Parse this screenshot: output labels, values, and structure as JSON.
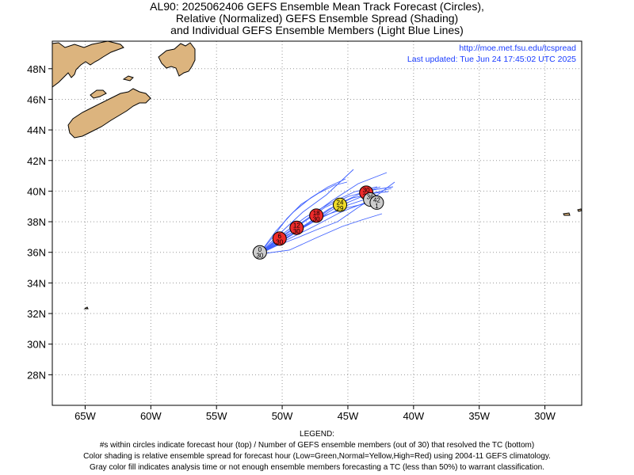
{
  "title": {
    "line1": "AL90: 2025062406 GEFS Ensemble Mean Track Forecast (Circles),",
    "line2": "Relative (Normalized) GEFS Ensemble Spread (Shading)",
    "line3": "and Individual GEFS Ensemble Members (Light Blue Lines)"
  },
  "info": {
    "url": "http://moe.met.fsu.edu/tcspread",
    "updated": "Last updated: Tue Jun 24 17:45:02 UTC 2025"
  },
  "axes": {
    "lon_ticks": [
      -65,
      -60,
      -55,
      -50,
      -45,
      -40,
      -35,
      -30
    ],
    "lon_labels": [
      "65W",
      "60W",
      "55W",
      "50W",
      "45W",
      "40W",
      "35W",
      "30W"
    ],
    "lat_ticks": [
      48,
      46,
      44,
      42,
      40,
      38,
      36,
      34,
      32,
      30,
      28
    ],
    "lat_labels": [
      "48N",
      "46N",
      "44N",
      "42N",
      "40N",
      "38N",
      "36N",
      "34N",
      "32N",
      "30N",
      "28N"
    ],
    "lon_range": [
      -67.5,
      -27.2
    ],
    "lat_range": [
      26.0,
      49.8
    ],
    "grid": "dotted"
  },
  "colors": {
    "land": "#dcb47e",
    "member_tracks": "#2b50ff",
    "spread_high": "#ee2a2a",
    "spread_normal": "#f0dc28",
    "analysis_gray": "#cccccc"
  },
  "track": [
    {
      "hour": "0",
      "members": "30",
      "lon": -51.7,
      "lat": 36.0,
      "shade": "gray"
    },
    {
      "hour": "6",
      "members": "30",
      "lon": -50.2,
      "lat": 36.9,
      "shade": "red"
    },
    {
      "hour": "12",
      "members": "30",
      "lon": -48.9,
      "lat": 37.6,
      "shade": "red"
    },
    {
      "hour": "18",
      "members": "30",
      "lon": -47.4,
      "lat": 38.4,
      "shade": "red"
    },
    {
      "hour": "24",
      "members": "29",
      "lon": -45.6,
      "lat": 39.1,
      "shade": "yellow"
    },
    {
      "hour": "30",
      "members": "26",
      "lon": -43.6,
      "lat": 39.9,
      "shade": "red"
    },
    {
      "hour": "36",
      "members": "",
      "lon": -43.3,
      "lat": 39.45,
      "shade": "gray"
    },
    {
      "hour": "42",
      "members": "1",
      "lon": -42.8,
      "lat": 39.25,
      "shade": "gray"
    }
  ],
  "legend": {
    "heading": "LEGEND:",
    "line1": "#s within circles indicate forecast hour (top) / Number of GEFS ensemble members (out of 30) that resolved the TC (bottom)",
    "line2": "Color shading is relative ensemble spread for forecast hour (Low=Green,Normal=Yellow,High=Red) using 2004-11 GEFS climatology.",
    "line3": "Gray color fill indicates analysis time or not enough ensemble members forecasting a TC (less than 50%) to warrant classification."
  }
}
